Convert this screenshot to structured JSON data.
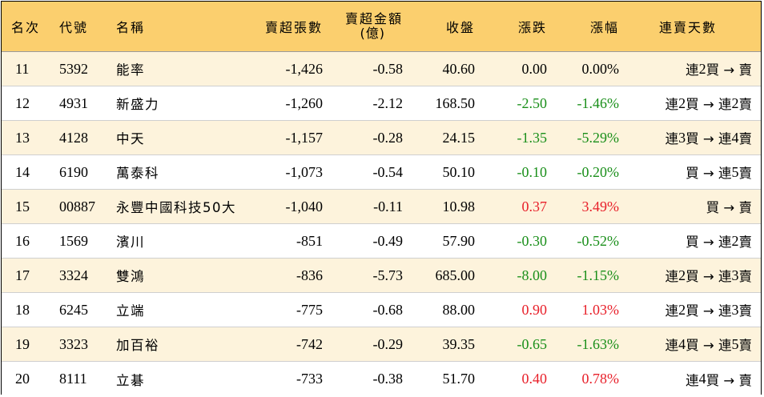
{
  "header": {
    "rank": "名次",
    "code": "代號",
    "name": "名稱",
    "sell_lots": "賣超張數",
    "sell_amount_line1": "賣超金額",
    "sell_amount_line2": "(億)",
    "close": "收盤",
    "change": "漲跌",
    "change_pct": "漲幅",
    "streak": "連賣天數"
  },
  "rows": [
    {
      "rank": "11",
      "code": "5392",
      "name": "能率",
      "sell_lots": "-1,426",
      "sell_amount": "-0.58",
      "close": "40.60",
      "change": "0.00",
      "change_pct": "0.00%",
      "streak": "連 2 買 → 賣",
      "color": "neutral"
    },
    {
      "rank": "12",
      "code": "4931",
      "name": "新盛力",
      "sell_lots": "-1,260",
      "sell_amount": "-2.12",
      "close": "168.50",
      "change": "-2.50",
      "change_pct": "-1.46%",
      "streak": "連 2 買 → 連 2 賣",
      "color": "green"
    },
    {
      "rank": "13",
      "code": "4128",
      "name": "中天",
      "sell_lots": "-1,157",
      "sell_amount": "-0.28",
      "close": "24.15",
      "change": "-1.35",
      "change_pct": "-5.29%",
      "streak": "連 3 買 → 連 4 賣",
      "color": "green"
    },
    {
      "rank": "14",
      "code": "6190",
      "name": "萬泰科",
      "sell_lots": "-1,073",
      "sell_amount": "-0.54",
      "close": "50.10",
      "change": "-0.10",
      "change_pct": "-0.20%",
      "streak": "買 → 連 5 賣",
      "color": "green"
    },
    {
      "rank": "15",
      "code": "00887",
      "name": "永豐中國科技50大",
      "sell_lots": "-1,040",
      "sell_amount": "-0.11",
      "close": "10.98",
      "change": "0.37",
      "change_pct": "3.49%",
      "streak": "買 → 賣",
      "color": "red"
    },
    {
      "rank": "16",
      "code": "1569",
      "name": "濱川",
      "sell_lots": "-851",
      "sell_amount": "-0.49",
      "close": "57.90",
      "change": "-0.30",
      "change_pct": "-0.52%",
      "streak": "買 → 連 2 賣",
      "color": "green"
    },
    {
      "rank": "17",
      "code": "3324",
      "name": "雙鴻",
      "sell_lots": "-836",
      "sell_amount": "-5.73",
      "close": "685.00",
      "change": "-8.00",
      "change_pct": "-1.15%",
      "streak": "連 2 買 → 連 3 賣",
      "color": "green"
    },
    {
      "rank": "18",
      "code": "6245",
      "name": "立端",
      "sell_lots": "-775",
      "sell_amount": "-0.68",
      "close": "88.00",
      "change": "0.90",
      "change_pct": "1.03%",
      "streak": "連 2 買 → 連 3 賣",
      "color": "red"
    },
    {
      "rank": "19",
      "code": "3323",
      "name": "加百裕",
      "sell_lots": "-742",
      "sell_amount": "-0.29",
      "close": "39.35",
      "change": "-0.65",
      "change_pct": "-1.63%",
      "streak": "連 4 買 → 連 5 賣",
      "color": "green"
    },
    {
      "rank": "20",
      "code": "8111",
      "name": "立碁",
      "sell_lots": "-733",
      "sell_amount": "-0.38",
      "close": "51.70",
      "change": "0.40",
      "change_pct": "0.78%",
      "streak": "連 4 買 → 賣",
      "color": "red"
    }
  ],
  "colors": {
    "header_bg": "#fbcf6e",
    "odd_row_bg": "#fdf3dc",
    "even_row_bg": "#ffffff",
    "up": "#e8202a",
    "down": "#1a8f1a"
  }
}
